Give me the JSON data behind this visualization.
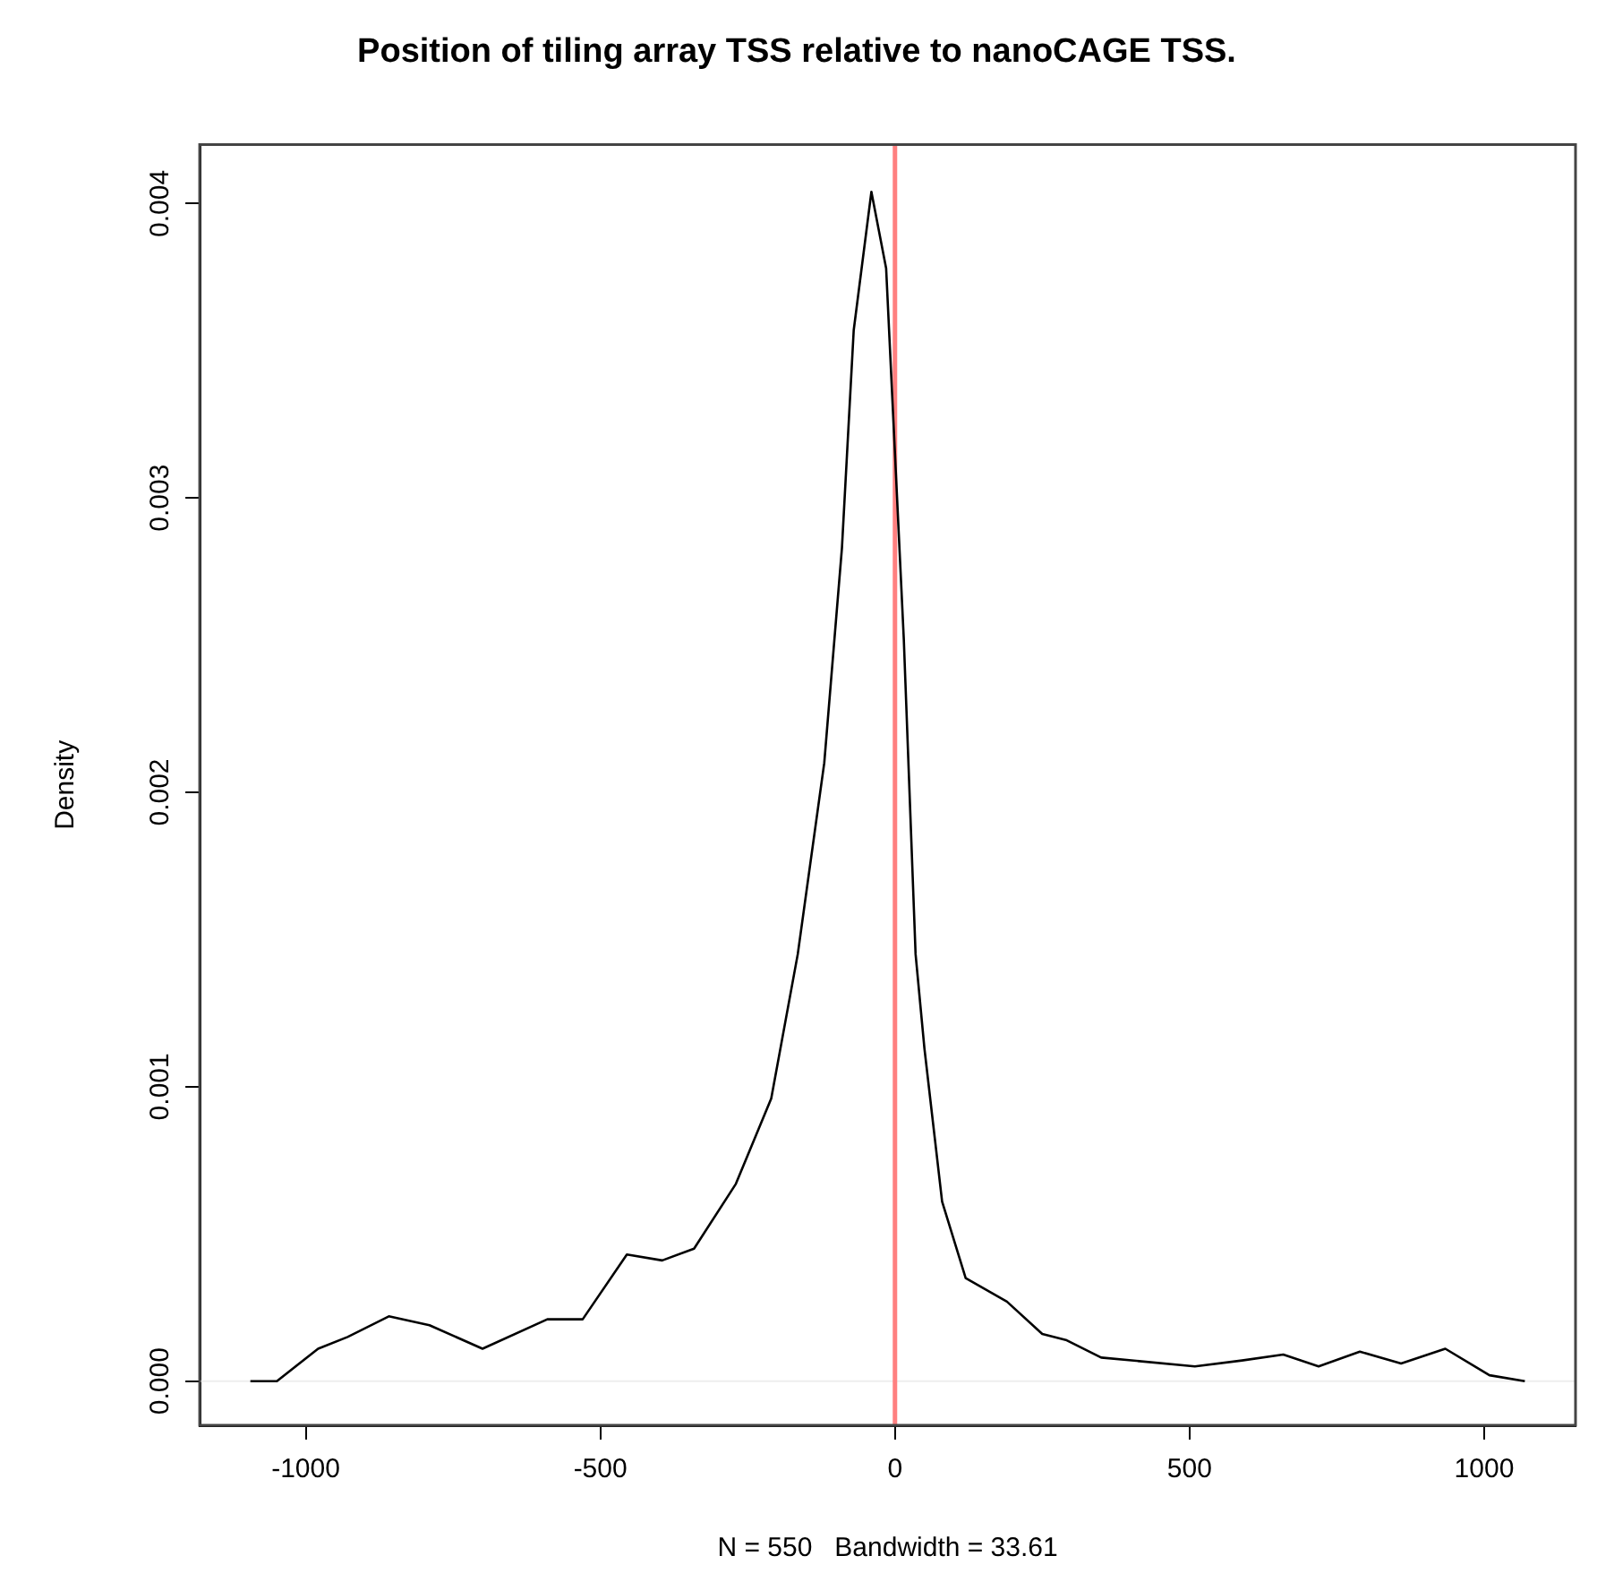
{
  "chart_data": {
    "type": "line",
    "title": "Position of tiling array TSS relative to nanoCAGE TSS.",
    "xlabel": "N = 550   Bandwidth = 33.61",
    "ylabel": "Density",
    "series": [
      {
        "color": "#000000",
        "x": [
          -1094,
          -1049,
          -979,
          -929,
          -859,
          -790,
          -700,
          -590,
          -530,
          -455,
          -395,
          -341,
          -270,
          -210,
          -165,
          -120,
          -90,
          -70,
          -40,
          -15,
          0,
          15,
          35,
          50,
          80,
          120,
          190,
          250,
          290,
          350,
          509,
          589,
          659,
          719,
          789,
          859,
          934,
          1009,
          1069
        ],
        "values": [
          0,
          0,
          0.00011,
          0.00015,
          0.00022,
          0.00019,
          0.00011,
          0.00021,
          0.00021,
          0.00043,
          0.00041,
          0.00045,
          0.00067,
          0.00096,
          0.00145,
          0.0021,
          0.00283,
          0.00357,
          0.00404,
          0.00378,
          0.00315,
          0.00252,
          0.00145,
          0.00113,
          0.00061,
          0.00035,
          0.00027,
          0.00016,
          0.00014,
          8e-05,
          5e-05,
          7e-05,
          9e-05,
          5e-05,
          0.0001,
          6e-05,
          0.00011,
          2e-05,
          0
        ]
      }
    ],
    "xlim": [
      -1180,
      1155
    ],
    "xticks": [
      -1000,
      -500,
      0,
      500,
      1000
    ],
    "ylim": [
      -0.00015,
      0.0042
    ],
    "yticks": [
      {
        "value": 0,
        "label": "0.000"
      },
      {
        "value": 0.001,
        "label": "0.001"
      },
      {
        "value": 0.002,
        "label": "0.002"
      },
      {
        "value": 0.003,
        "label": "0.003"
      },
      {
        "value": 0.004,
        "label": "0.004"
      }
    ],
    "ref_lines": [
      {
        "axis": "y",
        "value": 0,
        "color": "#eeeeee"
      },
      {
        "axis": "x",
        "value": 0,
        "color": "#ff8080"
      }
    ],
    "grid": false,
    "legend": false,
    "marker": "none",
    "line_style": "solid"
  }
}
